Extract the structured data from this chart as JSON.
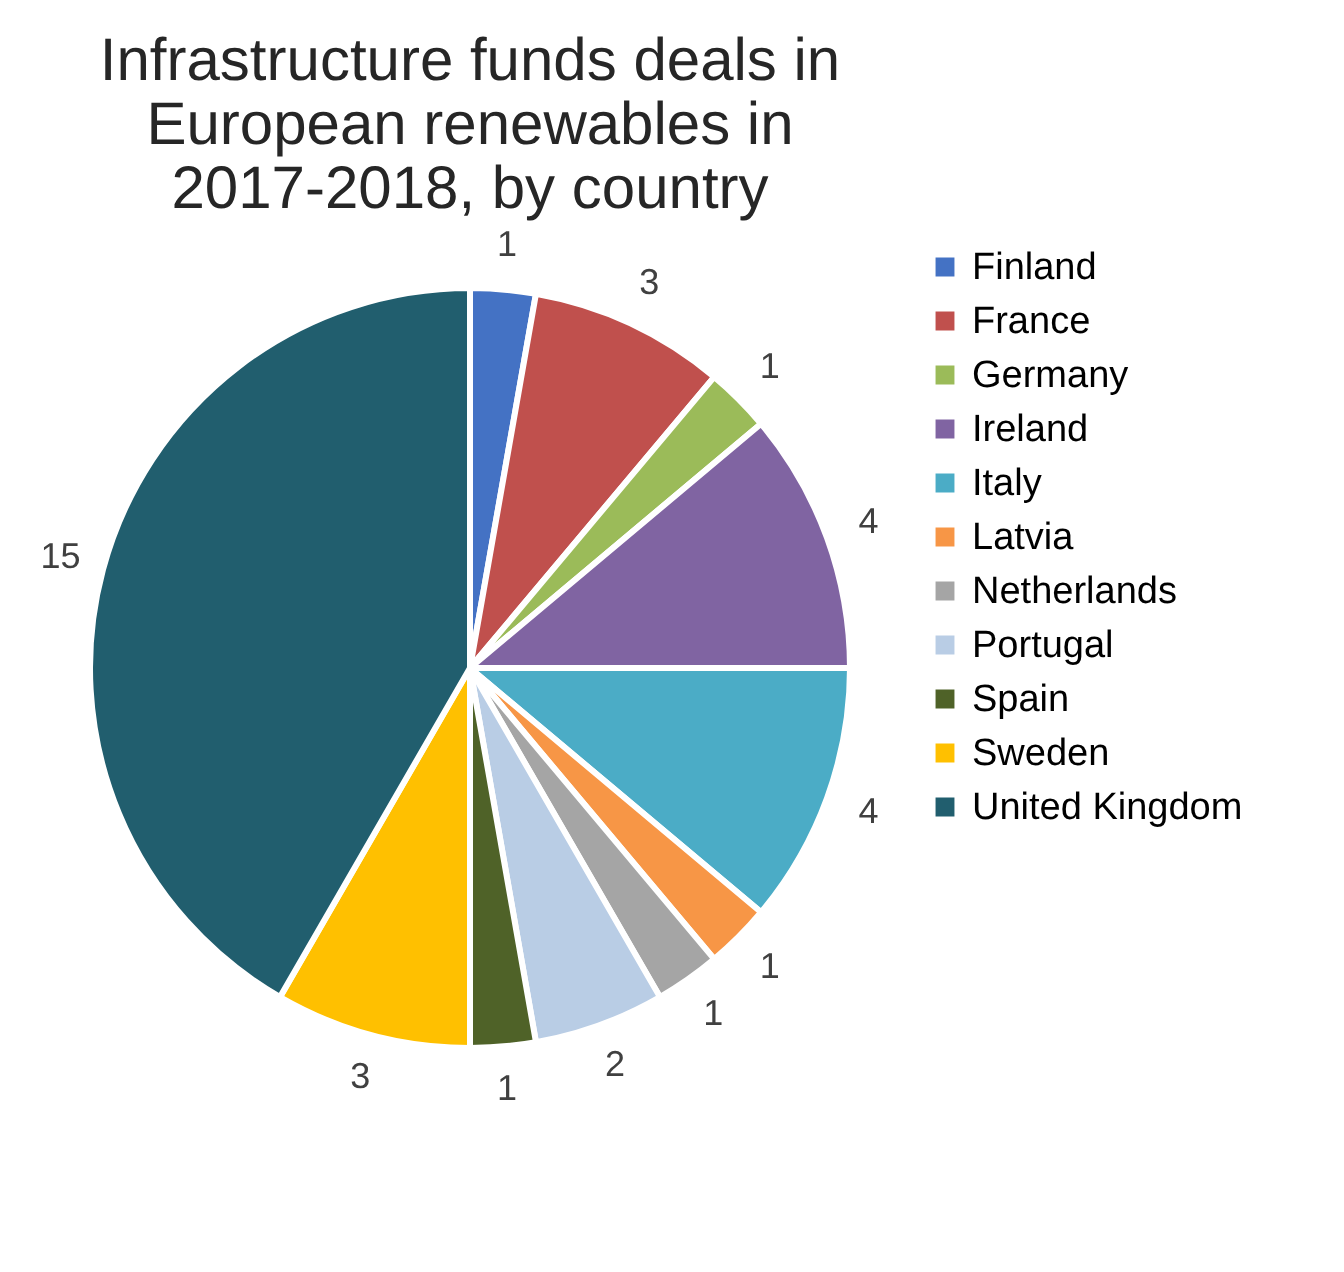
{
  "chart_data": {
    "type": "pie",
    "title": "Infrastructure funds deals in European renewables in 2017-2018, by country",
    "categories": [
      "Finland",
      "France",
      "Germany",
      "Ireland",
      "Italy",
      "Latvia",
      "Netherlands",
      "Portugal",
      "Spain",
      "Sweden",
      "United Kingdom"
    ],
    "values": [
      1,
      3,
      1,
      4,
      4,
      1,
      1,
      2,
      1,
      3,
      15
    ],
    "colors": [
      "#4472c4",
      "#c0504d",
      "#9bbb59",
      "#8064a2",
      "#4bacc6",
      "#f79646",
      "#a5a5a5",
      "#b9cde5",
      "#4f6228",
      "#ffc000",
      "#215e6e"
    ],
    "data_labels": true,
    "legend": "right"
  }
}
